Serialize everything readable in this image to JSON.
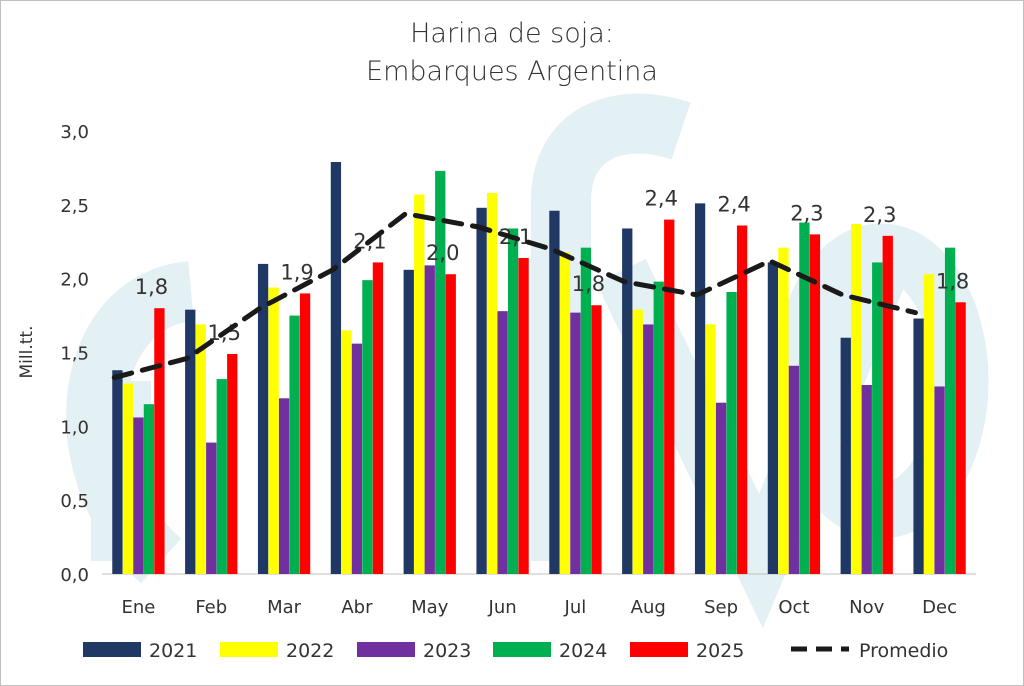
{
  "chart_data": {
    "type": "bar",
    "title": [
      "Harina de soja:",
      "Embarques Argentina"
    ],
    "xlabel": "",
    "ylabel": "Mill.tt.",
    "ylim": [
      0,
      3.0
    ],
    "yticks": [
      "0,0",
      "0,5",
      "1,0",
      "1,5",
      "2,0",
      "2,5",
      "3,0"
    ],
    "grid": false,
    "legend": "bottom",
    "categories": [
      "Ene",
      "Feb",
      "Mar",
      "Abr",
      "May",
      "Jun",
      "Jul",
      "Aug",
      "Sep",
      "Oct",
      "Nov",
      "Dec"
    ],
    "series": [
      {
        "name": "2021",
        "color": "#203864",
        "values": [
          1.38,
          1.79,
          2.1,
          2.79,
          2.06,
          2.48,
          2.46,
          2.34,
          2.51,
          2.11,
          1.6,
          1.73
        ]
      },
      {
        "name": "2022",
        "color": "#ffff00",
        "values": [
          1.29,
          1.69,
          1.94,
          1.65,
          2.57,
          2.58,
          2.18,
          1.79,
          1.69,
          2.21,
          2.37,
          2.03
        ]
      },
      {
        "name": "2023",
        "color": "#7030a0",
        "values": [
          1.06,
          0.89,
          1.19,
          1.56,
          2.09,
          1.78,
          1.77,
          1.69,
          1.16,
          1.41,
          1.28,
          1.27
        ]
      },
      {
        "name": "2024",
        "color": "#00b050",
        "values": [
          1.15,
          1.32,
          1.75,
          1.99,
          2.73,
          2.34,
          2.21,
          1.98,
          1.91,
          2.38,
          2.11,
          2.21
        ]
      },
      {
        "name": "2025",
        "color": "#ff0000",
        "values": [
          1.8,
          1.49,
          1.9,
          2.11,
          2.03,
          2.14,
          1.82,
          2.4,
          2.36,
          2.3,
          2.29,
          1.84
        ]
      }
    ],
    "line": {
      "name": "Promedio",
      "color": "#1a1a1a",
      "style": "dashed",
      "values": [
        1.33,
        1.46,
        1.8,
        2.06,
        2.44,
        2.35,
        2.2,
        1.98,
        1.89,
        2.12,
        1.89,
        1.77
      ]
    },
    "data_labels": [
      "1,8",
      "1,5",
      "1,9",
      "2,1",
      "2,0",
      "2,1",
      "1,8",
      "2,4",
      "2,4",
      "2,3",
      "2,3",
      "1,8"
    ]
  }
}
